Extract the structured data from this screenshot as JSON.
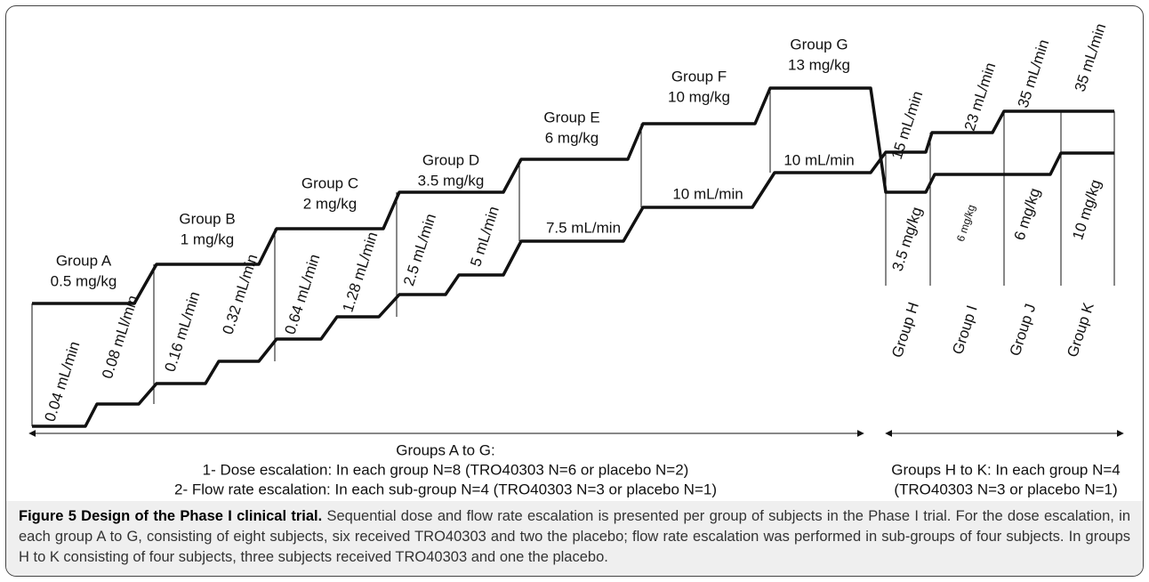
{
  "groups_a_g": [
    {
      "name": "Group A",
      "dose": "0.5 mg/kg",
      "flows": [
        "0.04 mL/min",
        "0.08 mLl/min"
      ]
    },
    {
      "name": "Group B",
      "dose": "1 mg/kg",
      "flows": [
        "0.16 mL/min",
        "0.32 mL/min"
      ]
    },
    {
      "name": "Group C",
      "dose": "2 mg/kg",
      "flows": [
        "0.64 mL/min",
        "1.28 mL/min"
      ]
    },
    {
      "name": "Group D",
      "dose": "3.5 mg/kg",
      "flows": [
        "2.5 mL/min",
        "5 mL/min"
      ]
    },
    {
      "name": "Group E",
      "dose": "6 mg/kg",
      "flows": [
        "7.5 mL/min"
      ]
    },
    {
      "name": "Group F",
      "dose": "10 mg/kg",
      "flows": [
        "10 mL/min"
      ]
    },
    {
      "name": "Group G",
      "dose": "13 mg/kg",
      "flows": [
        "10 mL/min"
      ]
    }
  ],
  "groups_h_k": [
    {
      "name": "Group H",
      "flow": "15 mL/min",
      "dose": "3.5 mg/kg"
    },
    {
      "name": "Group I",
      "flow": "23 mL/min",
      "dose": "6 mg/kg"
    },
    {
      "name": "Group J",
      "flow": "35 mL/min",
      "dose": "6 mg/kg"
    },
    {
      "name": "Group K",
      "flow": "35 mL/min",
      "dose": "10 mg/kg"
    }
  ],
  "legend_a_g": {
    "title": "Groups A to G:",
    "lines": [
      "1- Dose escalation: In each group N=8  (TRO40303 N=6 or placebo N=2)",
      "2- Flow rate escalation: In each sub-group N=4  (TRO40303 N=3 or placebo N=1)"
    ]
  },
  "legend_h_k": {
    "lines": [
      "Groups H to K: In each group N=4",
      "(TRO40303 N=3 or placebo N=1)"
    ]
  },
  "caption": {
    "label": "Figure 5 Design of the Phase I clinical trial.",
    "text": "Sequential dose and flow rate escalation is presented per group of subjects in the Phase I trial. For the dose escalation, in each group A to G, consisting of eight subjects, six received TRO40303 and two the placebo; flow rate escalation was performed in sub-groups of four subjects. In groups H to K consisting of four subjects, three subjects received TRO40303 and one the placebo."
  }
}
